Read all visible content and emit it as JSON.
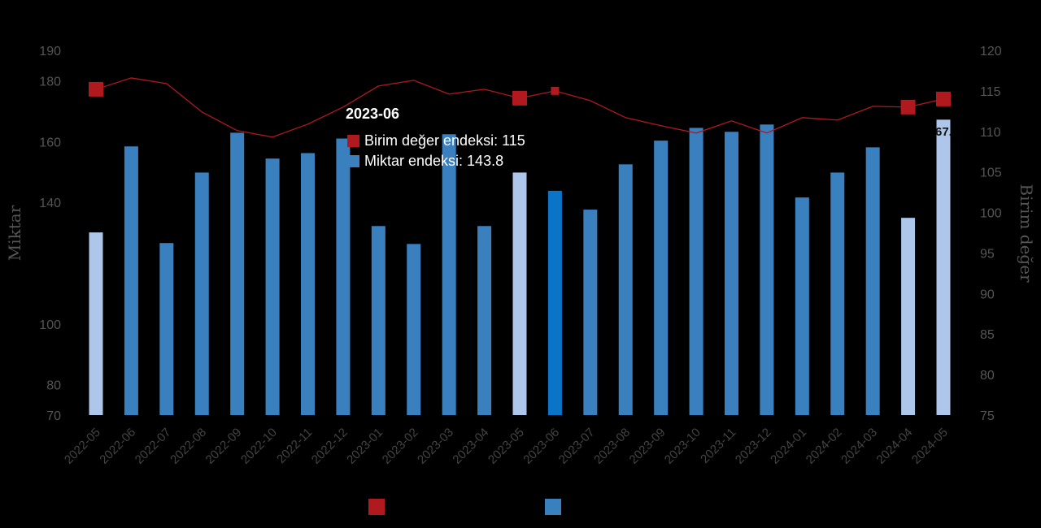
{
  "chart_data": {
    "type": "bar+line",
    "categories": [
      "2022-05",
      "2022-06",
      "2022-07",
      "2022-08",
      "2022-09",
      "2022-10",
      "2022-11",
      "2022-12",
      "2023-01",
      "2023-02",
      "2023-03",
      "2023-04",
      "2023-05",
      "2023-06",
      "2023-07",
      "2023-08",
      "2023-09",
      "2023-10",
      "2023-11",
      "2023-12",
      "2024-01",
      "2024-02",
      "2024-03",
      "2024-04",
      "2024-05"
    ],
    "series": [
      {
        "name": "Miktar endeksi",
        "type": "bar",
        "axis": "left",
        "color": "#3a80be",
        "values": [
          130.1,
          158.4,
          126.6,
          149.8,
          162.9,
          154.4,
          156.2,
          161.0,
          132.2,
          126.3,
          162.4,
          132.2,
          149.8,
          143.8,
          137.6,
          152.5,
          160.3,
          164.5,
          163.2,
          165.6,
          141.6,
          149.8,
          158.1,
          134.9,
          167.2
        ],
        "highlight_color": "#aec6ea",
        "highlighted": [
          "2022-05",
          "2023-05",
          "2024-04",
          "2024-05"
        ],
        "active_color": "#0a74c9",
        "active": "2023-06"
      },
      {
        "name": "Birim değer endeksi",
        "type": "line",
        "axis": "right",
        "color": "#b0191e",
        "values": [
          115.2,
          116.6,
          115.9,
          112.4,
          110.1,
          109.3,
          110.9,
          113.0,
          115.6,
          116.3,
          114.6,
          115.2,
          114.1,
          115,
          113.8,
          111.7,
          110.7,
          109.8,
          111.3,
          109.8,
          111.7,
          111.4,
          113.1,
          113.0,
          114.0
        ],
        "markers": [
          "2022-05",
          "2023-05",
          "2023-06",
          "2024-04",
          "2024-05"
        ]
      }
    ],
    "ylabel": "Miktar",
    "y2label": "Birim değer",
    "ylim": [
      70,
      190
    ],
    "y2lim": [
      75,
      120
    ],
    "yticks": [
      70,
      80,
      100,
      140,
      160,
      180,
      190
    ],
    "y2ticks": [
      75,
      80,
      85,
      90,
      95,
      100,
      105,
      110,
      115,
      120
    ],
    "data_label": "67.",
    "legend": "bottom",
    "grid": false
  },
  "tooltip": {
    "title": "2023-06",
    "rows": [
      {
        "label": "Birim değer endeksi: 115",
        "color": "#b0191e"
      },
      {
        "label": "Miktar endeksi: 143.8",
        "color": "#3a80be"
      }
    ]
  }
}
